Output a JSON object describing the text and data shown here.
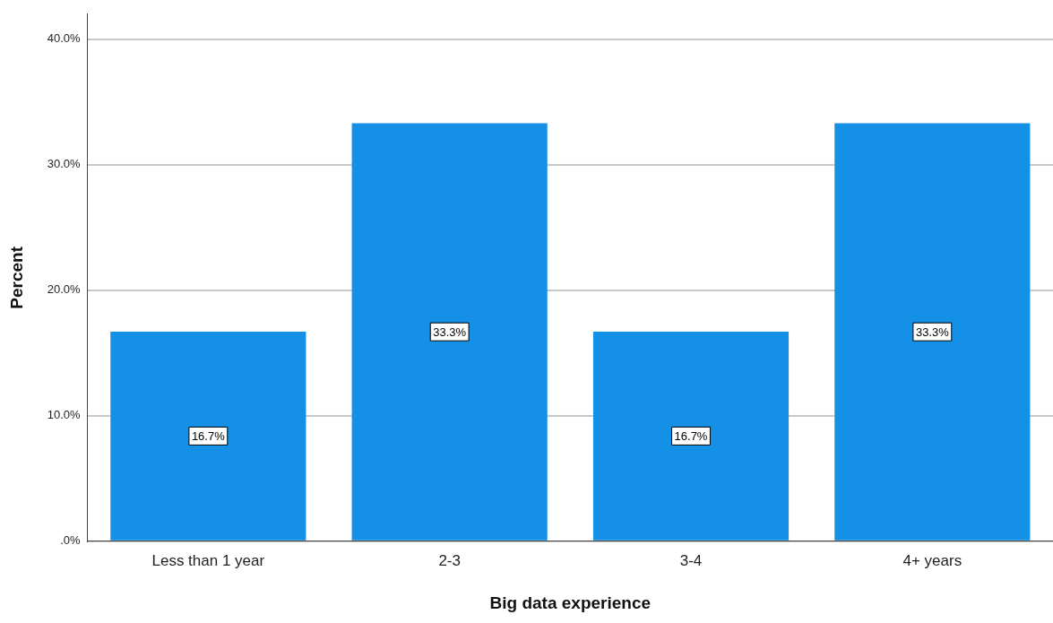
{
  "chart_data": {
    "type": "bar",
    "xlabel": "Big data experience",
    "ylabel": "Percent",
    "categories": [
      "Less than 1 year",
      "2-3",
      "3-4",
      "4+ years"
    ],
    "values": [
      16.7,
      33.3,
      16.7,
      33.3
    ],
    "value_labels": [
      "16.7%",
      "33.3%",
      "16.7%",
      "33.3%"
    ],
    "color": "#1490e6",
    "ylim": [
      0,
      42
    ],
    "yticks": [
      {
        "value": 0,
        "label": ".0%"
      },
      {
        "value": 10,
        "label": "10.0%"
      },
      {
        "value": 20,
        "label": "20.0%"
      },
      {
        "value": 30,
        "label": "30.0%"
      },
      {
        "value": 40,
        "label": "40.0%"
      }
    ],
    "grid": "y",
    "legend": false
  }
}
